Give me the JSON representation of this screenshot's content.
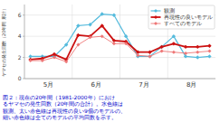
{
  "chart_data": {
    "type": "line",
    "y_label": "ヤマセの発生回数（20年間 累計）",
    "x": [
      0,
      1,
      2,
      3,
      4,
      5,
      6,
      7,
      8,
      9,
      10,
      11,
      12,
      13,
      14,
      15
    ],
    "xlim": [
      -0.5,
      15.5
    ],
    "xticks": [
      {
        "value": 1.5,
        "label": "5月"
      },
      {
        "value": 5.5,
        "label": "6月"
      },
      {
        "value": 9.5,
        "label": "7月"
      },
      {
        "value": 13.5,
        "label": "8月"
      }
    ],
    "ylim": [
      0,
      7
    ],
    "yticks": [
      0,
      2,
      4,
      6
    ],
    "grid": true,
    "legend": "upper right",
    "series": [
      {
        "name": "観測",
        "color": "#55BBDD",
        "marker": "diamond",
        "line_style": "solid",
        "values": [
          2.1,
          2.1,
          2.1,
          3.2,
          5.0,
          5.1,
          6.1,
          6.0,
          4.0,
          2.1,
          2.1,
          3.0,
          4.0,
          2.1,
          2.0,
          2.1
        ]
      },
      {
        "name": "再現性の良いモデル",
        "color": "#CC1111",
        "marker": "diamond",
        "line_style": "solid",
        "values": [
          1.8,
          1.9,
          2.3,
          1.8,
          4.1,
          4.0,
          5.0,
          3.6,
          3.5,
          2.5,
          2.5,
          3.0,
          3.3,
          3.0,
          3.0,
          3.1
        ]
      },
      {
        "name": "すべてのモデル",
        "color": "#EE7777",
        "marker": "diamond",
        "line_style": "solid",
        "values": [
          1.7,
          1.7,
          2.0,
          1.6,
          3.2,
          3.9,
          4.0,
          3.3,
          3.3,
          2.2,
          2.1,
          2.6,
          2.5,
          2.4,
          2.5,
          2.6
        ]
      }
    ],
    "annotations": [
      {
        "text": "図２：現在の20年間（1981-2000年）におけ\nるヤマセの発生回数（20年間の合計）。水色線は\n観測、太い赤色線は再現性の良い9個のモデルの、\n細い赤色線は全てのモデルの平均回数を示す。",
        "color": "#0000CC"
      }
    ]
  }
}
